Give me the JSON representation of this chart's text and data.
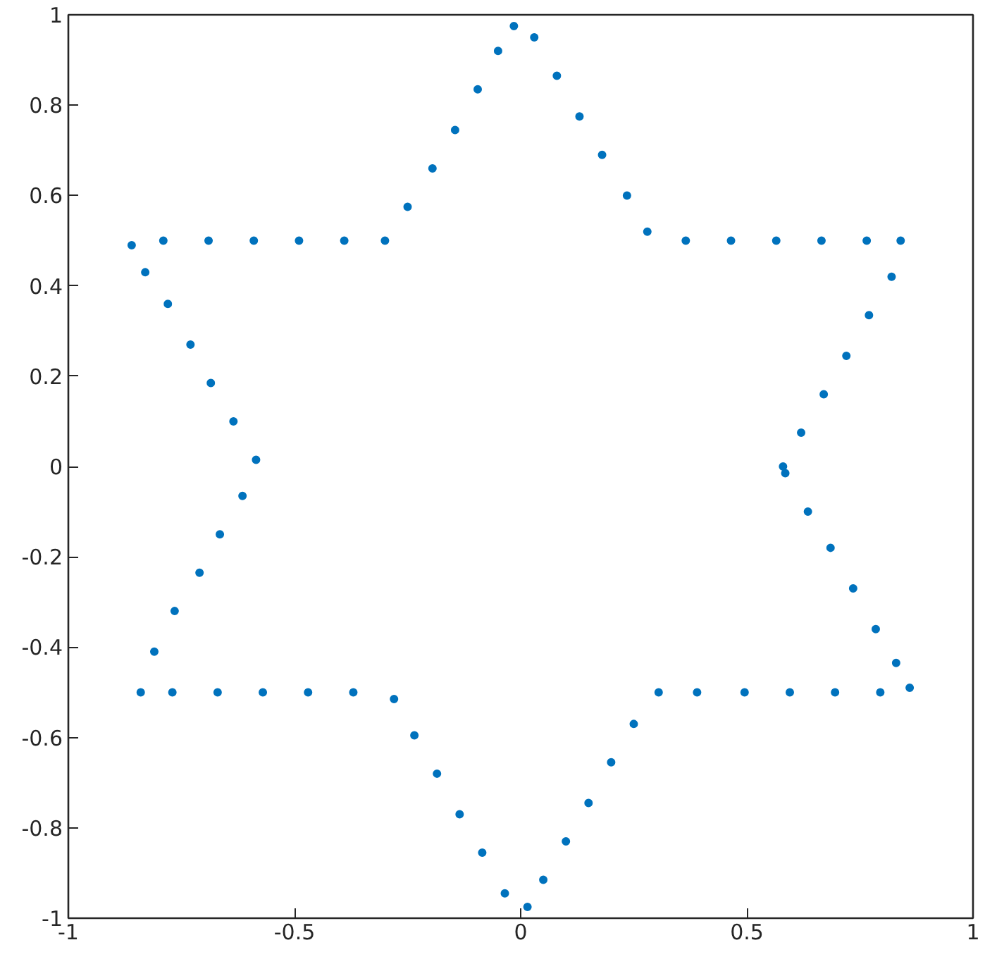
{
  "chart_data": {
    "type": "scatter",
    "marker": "circle",
    "grid": false,
    "xlim": [
      -1,
      1
    ],
    "ylim": [
      -1,
      1
    ],
    "xticks": [
      -1,
      -0.5,
      0,
      0.5,
      1
    ],
    "yticks": [
      -1,
      -0.8,
      -0.6,
      -0.4,
      -0.2,
      0,
      0.2,
      0.4,
      0.6,
      0.8,
      1
    ],
    "series": [
      {
        "color": "#0072bd",
        "x": [
          -0.86,
          -0.83,
          -0.78,
          -0.73,
          -0.685,
          -0.635,
          -0.585,
          -0.615,
          -0.665,
          -0.71,
          -0.765,
          -0.81,
          -0.84,
          -0.77,
          -0.67,
          -0.57,
          -0.47,
          -0.37,
          -0.28,
          -0.235,
          -0.185,
          -0.135,
          -0.085,
          -0.035,
          0.015,
          0.05,
          0.1,
          0.15,
          0.2,
          0.25,
          0.305,
          0.39,
          0.495,
          0.595,
          0.695,
          0.795,
          0.86,
          0.83,
          0.785,
          0.735,
          0.685,
          0.635,
          0.585,
          0.58,
          0.62,
          0.67,
          0.72,
          0.77,
          0.82,
          0.84,
          0.765,
          0.665,
          0.565,
          0.465,
          0.365,
          0.28,
          0.235,
          0.18,
          0.13,
          0.08,
          0.03,
          -0.015,
          -0.05,
          -0.095,
          -0.145,
          -0.195,
          -0.25,
          -0.3,
          -0.39,
          -0.49,
          -0.59,
          -0.69,
          -0.79
        ],
        "values": [
          0.49,
          0.43,
          0.36,
          0.27,
          0.185,
          0.1,
          0.015,
          -0.065,
          -0.15,
          -0.235,
          -0.32,
          -0.41,
          -0.5,
          -0.5,
          -0.5,
          -0.5,
          -0.5,
          -0.5,
          -0.515,
          -0.595,
          -0.68,
          -0.77,
          -0.855,
          -0.945,
          -0.975,
          -0.915,
          -0.83,
          -0.745,
          -0.655,
          -0.57,
          -0.5,
          -0.5,
          -0.5,
          -0.5,
          -0.5,
          -0.5,
          -0.49,
          -0.435,
          -0.36,
          -0.27,
          -0.18,
          -0.1,
          -0.015,
          0.0,
          0.075,
          0.16,
          0.245,
          0.335,
          0.42,
          0.5,
          0.5,
          0.5,
          0.5,
          0.5,
          0.5,
          0.52,
          0.6,
          0.69,
          0.775,
          0.865,
          0.95,
          0.975,
          0.92,
          0.835,
          0.745,
          0.66,
          0.575,
          0.5,
          0.5,
          0.5,
          0.5,
          0.5,
          0.5
        ]
      }
    ]
  }
}
